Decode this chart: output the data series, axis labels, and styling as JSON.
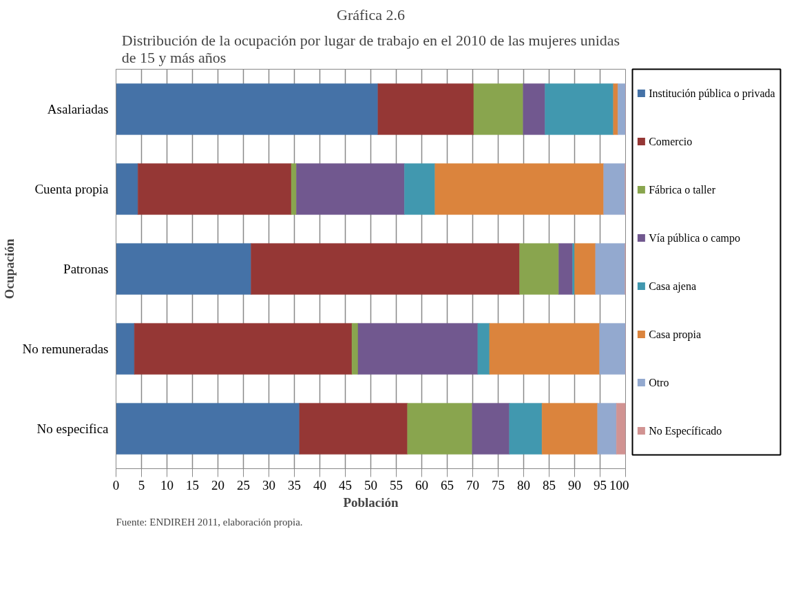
{
  "chart_data": {
    "type": "bar",
    "orientation": "horizontal",
    "stacked": true,
    "title": "Gráfica 2.6",
    "subtitle": "Distribución de la ocupación por lugar de trabajo en el 2010 de las mujeres unidas\nde 15 y más años",
    "xlabel": "Población",
    "ylabel": "Ocupación",
    "categories": [
      "Asalariadas",
      "Cuenta propia",
      "Patronas",
      "No remuneradas",
      "No especifica"
    ],
    "xlim": [
      0,
      100
    ],
    "xticks": [
      0,
      5,
      10,
      15,
      20,
      25,
      30,
      35,
      40,
      45,
      50,
      55,
      60,
      65,
      70,
      75,
      80,
      85,
      90,
      95,
      100
    ],
    "grid": "x",
    "legend": "right",
    "annotations": [
      "Fuente: ENDIREH 2011, elaboración propia."
    ],
    "series": [
      {
        "name": "Institución pública o privada",
        "color": "#4572a7",
        "values": [
          51.4,
          4.3,
          26.5,
          3.6,
          36.0
        ]
      },
      {
        "name": "Comercio",
        "color": "#953735",
        "values": [
          18.8,
          30.1,
          52.7,
          42.7,
          21.2
        ]
      },
      {
        "name": "Fábrica o taller",
        "color": "#89a54e",
        "values": [
          9.7,
          1.0,
          7.7,
          1.2,
          12.7
        ]
      },
      {
        "name": "Vía pública o campo",
        "color": "#71588f",
        "values": [
          4.3,
          21.2,
          2.7,
          23.5,
          7.3
        ]
      },
      {
        "name": "Casa ajena",
        "color": "#4198af",
        "values": [
          13.4,
          6.0,
          0.4,
          2.3,
          6.4
        ]
      },
      {
        "name": "Casa propia",
        "color": "#db843d",
        "values": [
          0.9,
          33.1,
          4.1,
          21.6,
          10.9
        ]
      },
      {
        "name": "Otro",
        "color": "#93a9cf",
        "values": [
          1.5,
          4.2,
          5.8,
          5.1,
          3.7
        ]
      },
      {
        "name": "No Específicado",
        "color": "#d19392",
        "values": [
          0,
          0.1,
          0.1,
          0,
          1.8
        ]
      }
    ]
  }
}
